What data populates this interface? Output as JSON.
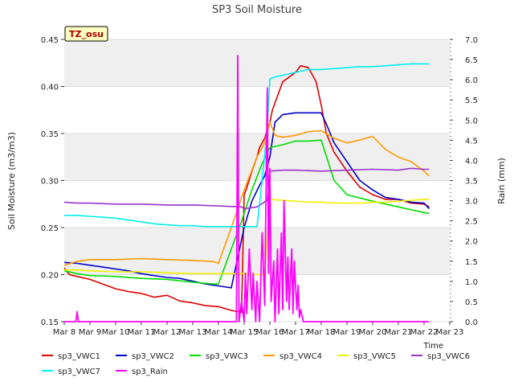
{
  "chart_data": {
    "type": "line",
    "title": "SP3 Soil Moisture",
    "xlabel": "Time",
    "ylabel": "Soil Moisture (m3/m3)",
    "y2label": "Rain (mm)",
    "ylim": [
      0.15,
      0.45
    ],
    "y2lim": [
      0,
      7
    ],
    "xlim": [
      0,
      15
    ],
    "x_ticks": [
      {
        "v": 0,
        "label": "Mar 8"
      },
      {
        "v": 1,
        "label": "Mar 9"
      },
      {
        "v": 2,
        "label": "Mar 10"
      },
      {
        "v": 3,
        "label": "Mar 11"
      },
      {
        "v": 4,
        "label": "Mar 12"
      },
      {
        "v": 5,
        "label": "Mar 13"
      },
      {
        "v": 6,
        "label": "Mar 14"
      },
      {
        "v": 7,
        "label": "Mar 15"
      },
      {
        "v": 8,
        "label": "Mar 16"
      },
      {
        "v": 9,
        "label": "Mar 17"
      },
      {
        "v": 10,
        "label": "Mar 18"
      },
      {
        "v": 11,
        "label": "Mar 19"
      },
      {
        "v": 12,
        "label": "Mar 20"
      },
      {
        "v": 13,
        "label": "Mar 21"
      },
      {
        "v": 14,
        "label": "Mar 22"
      },
      {
        "v": 15,
        "label": "Mar 23"
      }
    ],
    "y_ticks": [
      "0.15",
      "0.20",
      "0.25",
      "0.30",
      "0.35",
      "0.40",
      "0.45"
    ],
    "y2_ticks": [
      "0.0",
      "0.5",
      "1.0",
      "1.5",
      "2.0",
      "2.5",
      "3.0",
      "3.5",
      "4.0",
      "4.5",
      "5.0",
      "5.5",
      "6.0",
      "6.5",
      "7.0"
    ],
    "annotation": "TZ_osu",
    "grid": "horizontal bands",
    "legend_position": "bottom",
    "series": [
      {
        "name": "sp3_VWC1",
        "color": "#dd0000",
        "axis": "left",
        "x": [
          0,
          0.2,
          0.5,
          1,
          1.5,
          2,
          2.5,
          3,
          3.5,
          4,
          4.5,
          5,
          5.5,
          6,
          6.5,
          6.9,
          7.0,
          7.1,
          7.3,
          7.5,
          7.6,
          7.8,
          8.0,
          8.1,
          8.5,
          9.0,
          9.2,
          9.5,
          9.8,
          10.0,
          10.2,
          10.5,
          11.0,
          11.5,
          12.0,
          12.5,
          13.0,
          13.5,
          14.0,
          14.2
        ],
        "values": [
          0.207,
          0.2,
          0.198,
          0.195,
          0.19,
          0.185,
          0.182,
          0.18,
          0.176,
          0.178,
          0.172,
          0.17,
          0.167,
          0.166,
          0.162,
          0.16,
          0.285,
          0.292,
          0.31,
          0.325,
          0.335,
          0.345,
          0.362,
          0.375,
          0.405,
          0.415,
          0.422,
          0.42,
          0.405,
          0.38,
          0.35,
          0.33,
          0.31,
          0.293,
          0.285,
          0.28,
          0.28,
          0.276,
          0.275,
          0.272
        ]
      },
      {
        "name": "sp3_VWC2",
        "color": "#0000cc",
        "axis": "left",
        "x": [
          0,
          0.5,
          1,
          1.5,
          2,
          2.5,
          3,
          3.5,
          4,
          4.5,
          5,
          5.5,
          6,
          6.5,
          7.0,
          7.3,
          7.6,
          7.8,
          8.0,
          8.2,
          8.5,
          9.0,
          9.5,
          10.0,
          10.2,
          10.5,
          11,
          11.5,
          12,
          12.5,
          13,
          13.5,
          14,
          14.2
        ],
        "values": [
          0.213,
          0.212,
          0.21,
          0.208,
          0.206,
          0.204,
          0.201,
          0.199,
          0.197,
          0.196,
          0.193,
          0.19,
          0.188,
          0.186,
          0.25,
          0.278,
          0.295,
          0.305,
          0.325,
          0.362,
          0.37,
          0.372,
          0.372,
          0.372,
          0.36,
          0.34,
          0.32,
          0.3,
          0.29,
          0.282,
          0.28,
          0.277,
          0.276,
          0.27
        ]
      },
      {
        "name": "sp3_VWC3",
        "color": "#00dd00",
        "axis": "left",
        "x": [
          0,
          0.5,
          1,
          2,
          3,
          4,
          5,
          5.8,
          6.0,
          6.9,
          7.3,
          7.7,
          8.0,
          8.5,
          9.0,
          9.5,
          10.0,
          10.5,
          11.0,
          12.0,
          13.0,
          14.0,
          14.2
        ],
        "values": [
          0.204,
          0.201,
          0.199,
          0.198,
          0.196,
          0.195,
          0.192,
          0.19,
          0.19,
          0.257,
          0.29,
          0.318,
          0.335,
          0.338,
          0.342,
          0.342,
          0.343,
          0.3,
          0.285,
          0.278,
          0.272,
          0.266,
          0.265
        ]
      },
      {
        "name": "sp3_VWC4",
        "color": "#ff9900",
        "axis": "left",
        "x": [
          0,
          0.5,
          1,
          2,
          3,
          4,
          5,
          5.8,
          6.0,
          6.5,
          7.0,
          7.5,
          7.8,
          8.0,
          8.2,
          8.5,
          9.0,
          9.5,
          10.0,
          10.5,
          11.0,
          11.5,
          12.0,
          12.5,
          13.0,
          13.5,
          14.0,
          14.2
        ],
        "values": [
          0.21,
          0.214,
          0.216,
          0.216,
          0.217,
          0.216,
          0.215,
          0.214,
          0.212,
          0.25,
          0.29,
          0.325,
          0.34,
          0.362,
          0.348,
          0.346,
          0.348,
          0.352,
          0.353,
          0.345,
          0.34,
          0.343,
          0.347,
          0.333,
          0.325,
          0.32,
          0.31,
          0.305
        ]
      },
      {
        "name": "sp3_VWC5",
        "color": "#f0f000",
        "axis": "left",
        "x": [
          0,
          0.5,
          1,
          2,
          3,
          4,
          5,
          6,
          7,
          7.5,
          7.8,
          8.0,
          8.5,
          9,
          9.5,
          10,
          10.5,
          11,
          11.5,
          12,
          12.5,
          13,
          13.5,
          14,
          14.2
        ],
        "values": [
          0.205,
          0.205,
          0.204,
          0.203,
          0.203,
          0.202,
          0.201,
          0.201,
          0.201,
          0.2,
          0.2,
          0.28,
          0.279,
          0.278,
          0.277,
          0.277,
          0.276,
          0.276,
          0.276,
          0.277,
          0.277,
          0.278,
          0.279,
          0.28,
          0.28
        ]
      },
      {
        "name": "sp3_VWC6",
        "color": "#9933cc",
        "axis": "left",
        "x": [
          0,
          0.5,
          1,
          2,
          3,
          4,
          5,
          6,
          6.9,
          7.0,
          7.5,
          7.9,
          8.0,
          8.5,
          9,
          10,
          11,
          12,
          13,
          13.5,
          14,
          14.2
        ],
        "values": [
          0.277,
          0.276,
          0.276,
          0.275,
          0.275,
          0.274,
          0.274,
          0.273,
          0.272,
          0.27,
          0.272,
          0.279,
          0.31,
          0.311,
          0.311,
          0.31,
          0.311,
          0.312,
          0.311,
          0.313,
          0.312,
          0.312
        ]
      },
      {
        "name": "sp3_VWC7",
        "color": "#00eeee",
        "axis": "left",
        "x": [
          0,
          0.5,
          1,
          1.5,
          2,
          2.5,
          3,
          3.5,
          4,
          4.5,
          5,
          5.5,
          6,
          6.5,
          7.0,
          7.5,
          7.7,
          7.9,
          8.0,
          8.2,
          8.5,
          9.0,
          9.5,
          10.0,
          10.5,
          11,
          11.5,
          12,
          12.5,
          13,
          13.5,
          14,
          14.2
        ],
        "values": [
          0.263,
          0.263,
          0.262,
          0.261,
          0.26,
          0.258,
          0.256,
          0.254,
          0.253,
          0.252,
          0.252,
          0.251,
          0.251,
          0.251,
          0.251,
          0.251,
          0.3,
          0.355,
          0.408,
          0.41,
          0.412,
          0.415,
          0.418,
          0.418,
          0.419,
          0.42,
          0.421,
          0.421,
          0.422,
          0.423,
          0.424,
          0.424,
          0.424
        ]
      },
      {
        "name": "sp3_Rain",
        "color": "#ff00ff",
        "axis": "right",
        "x": [
          0,
          0.45,
          0.5,
          0.55,
          0.6,
          6.6,
          6.7,
          6.75,
          6.8,
          6.9,
          7.0,
          7.05,
          7.1,
          7.2,
          7.3,
          7.35,
          7.45,
          7.5,
          7.6,
          7.7,
          7.8,
          7.9,
          7.95,
          8.0,
          8.05,
          8.15,
          8.2,
          8.3,
          8.35,
          8.45,
          8.5,
          8.55,
          8.65,
          8.7,
          8.75,
          8.85,
          8.9,
          8.95,
          9.05,
          9.1,
          9.15,
          9.2,
          9.3,
          14.2
        ],
        "values": [
          0,
          0,
          0.25,
          0,
          0,
          0,
          0,
          6.6,
          0,
          0.5,
          0,
          1.2,
          0.2,
          1.8,
          0.3,
          1.2,
          0,
          1.0,
          0,
          2.2,
          0.4,
          5.8,
          1.2,
          3.8,
          0.5,
          1.5,
          0,
          1.8,
          0.2,
          2.2,
          0.3,
          3.0,
          0.5,
          1.6,
          0.3,
          1.8,
          0.2,
          1.5,
          0.3,
          0.9,
          0.1,
          0.3,
          0,
          0
        ]
      }
    ]
  }
}
